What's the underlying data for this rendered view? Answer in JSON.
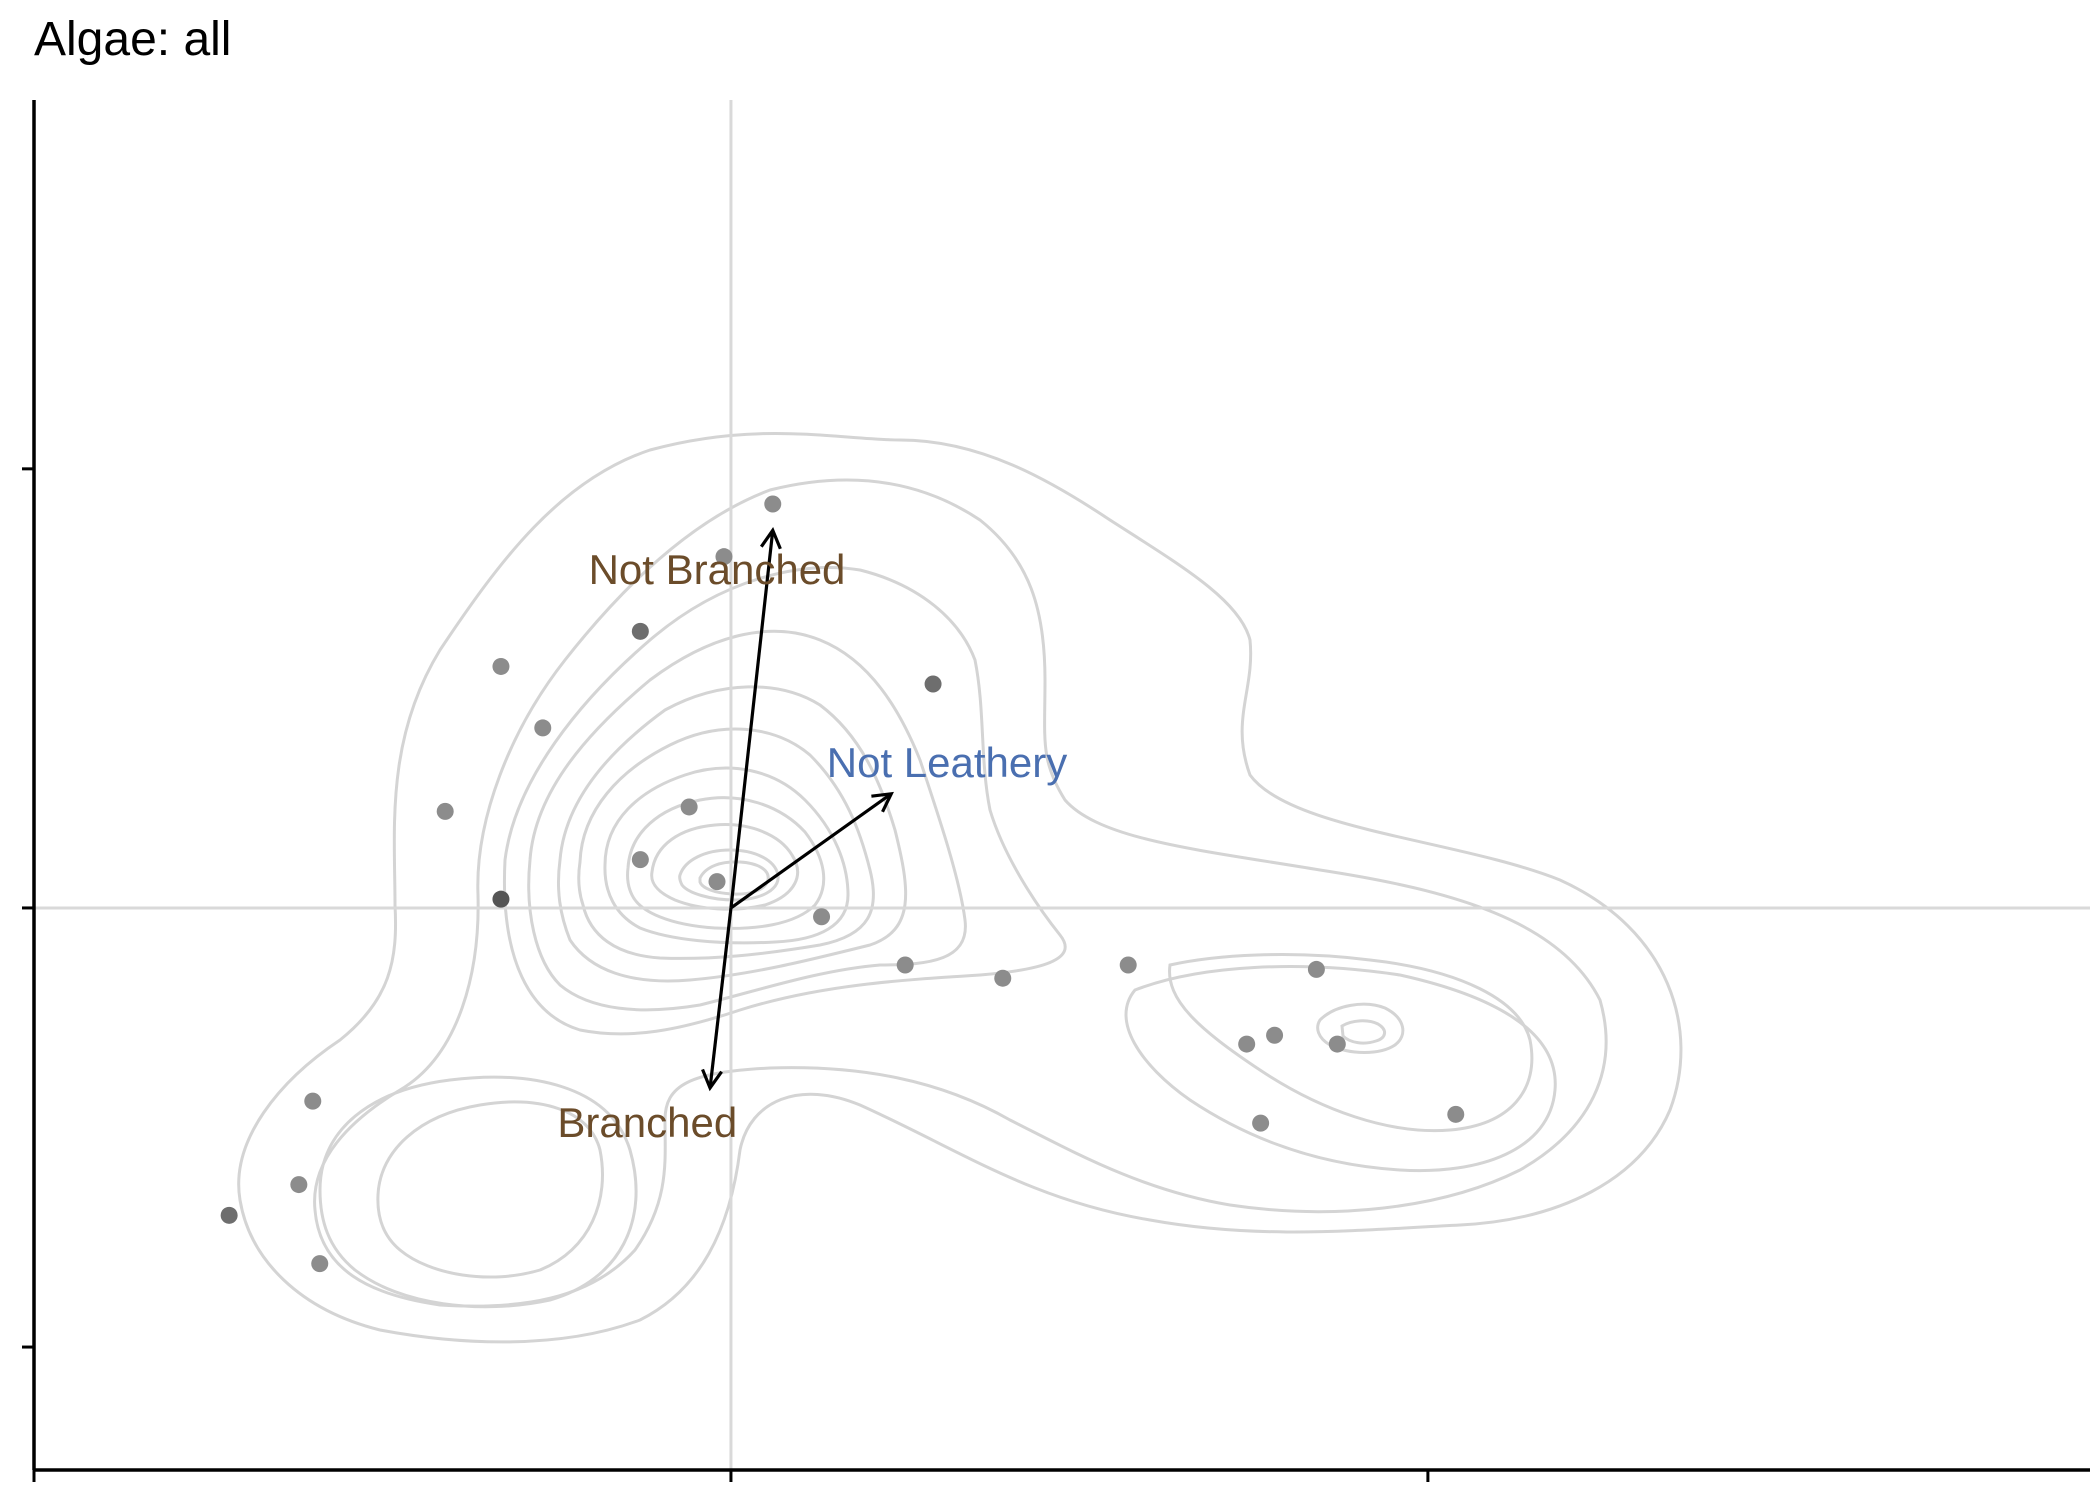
{
  "chart_data": {
    "type": "scatter",
    "title": "Algae: all",
    "xlabel": "",
    "ylabel": "",
    "xlim": [
      -1.0,
      1.95
    ],
    "ylim": [
      -1.28,
      1.84
    ],
    "x_ticks": [
      -1,
      0,
      1
    ],
    "y_ticks": [
      -1,
      0,
      1
    ],
    "tick_labels_shown": false,
    "reference_lines": {
      "x": 0,
      "y": 0,
      "color": "#d9d9d9"
    },
    "grid": false,
    "legend": "none",
    "colors": {
      "points": "#7a7a7a",
      "contours": "#d4d4d4",
      "arrows": "#000000",
      "label_branched": "#6b4c2a",
      "label_leathery": "#4a6fb0"
    },
    "points": [
      {
        "x": 0.06,
        "y": 0.92,
        "shade": "#8c8c8c"
      },
      {
        "x": -0.01,
        "y": 0.8,
        "shade": "#8c8c8c"
      },
      {
        "x": -0.13,
        "y": 0.63,
        "shade": "#6e6e6e"
      },
      {
        "x": -0.33,
        "y": 0.55,
        "shade": "#8c8c8c"
      },
      {
        "x": 0.29,
        "y": 0.51,
        "shade": "#6e6e6e"
      },
      {
        "x": -0.27,
        "y": 0.41,
        "shade": "#8c8c8c"
      },
      {
        "x": -0.41,
        "y": 0.22,
        "shade": "#8c8c8c"
      },
      {
        "x": -0.06,
        "y": 0.23,
        "shade": "#8c8c8c"
      },
      {
        "x": -0.13,
        "y": 0.11,
        "shade": "#8c8c8c"
      },
      {
        "x": -0.02,
        "y": 0.06,
        "shade": "#8c8c8c"
      },
      {
        "x": -0.33,
        "y": 0.02,
        "shade": "#555555"
      },
      {
        "x": 0.13,
        "y": -0.02,
        "shade": "#8c8c8c"
      },
      {
        "x": 0.25,
        "y": -0.13,
        "shade": "#8c8c8c"
      },
      {
        "x": 0.39,
        "y": -0.16,
        "shade": "#8c8c8c"
      },
      {
        "x": 0.57,
        "y": -0.13,
        "shade": "#8c8c8c"
      },
      {
        "x": 0.84,
        "y": -0.14,
        "shade": "#8c8c8c"
      },
      {
        "x": 0.74,
        "y": -0.31,
        "shade": "#8c8c8c"
      },
      {
        "x": 0.78,
        "y": -0.29,
        "shade": "#8c8c8c"
      },
      {
        "x": 0.87,
        "y": -0.31,
        "shade": "#8c8c8c"
      },
      {
        "x": 0.76,
        "y": -0.49,
        "shade": "#8c8c8c"
      },
      {
        "x": 1.04,
        "y": -0.47,
        "shade": "#8c8c8c"
      },
      {
        "x": -0.6,
        "y": -0.44,
        "shade": "#8c8c8c"
      },
      {
        "x": -0.62,
        "y": -0.63,
        "shade": "#8c8c8c"
      },
      {
        "x": -0.72,
        "y": -0.7,
        "shade": "#6e6e6e"
      },
      {
        "x": -0.59,
        "y": -0.81,
        "shade": "#8c8c8c"
      }
    ],
    "arrows": [
      {
        "label": "Not Branched",
        "x": 0.06,
        "y": 0.86,
        "label_x": -0.02,
        "label_y": 0.77,
        "color": "#6b4c2a"
      },
      {
        "label": "Branched",
        "x": -0.03,
        "y": -0.41,
        "label_x": -0.12,
        "label_y": -0.49,
        "color": "#6b4c2a"
      },
      {
        "label": "Not Leathery",
        "x": 0.23,
        "y": 0.26,
        "label_x": 0.31,
        "label_y": 0.33,
        "color": "#4a6fb0"
      }
    ],
    "density_contours": true
  }
}
